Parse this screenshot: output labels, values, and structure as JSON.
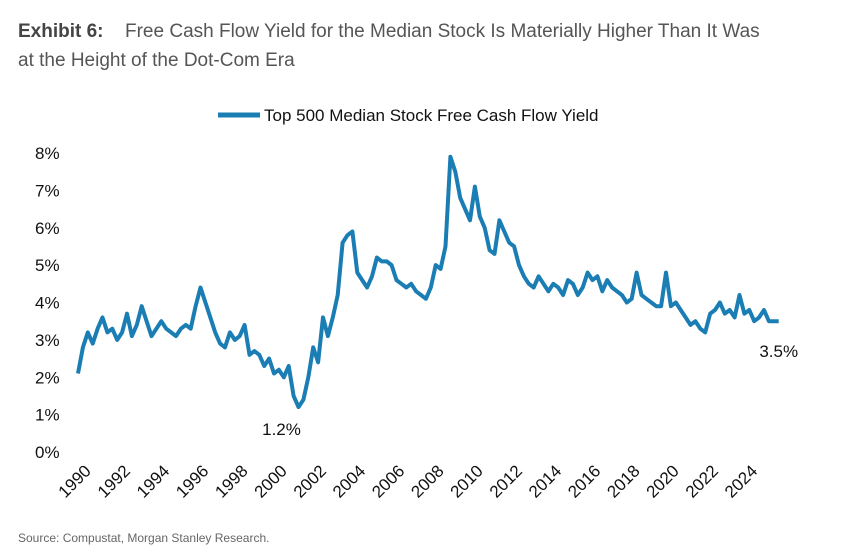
{
  "chart_data": {
    "type": "line",
    "exhibit": "Exhibit 6:",
    "title": "Free Cash Flow Yield for the Median Stock Is Materially Higher Than It Was at the Height of the Dot-Com Era",
    "source": "Source: Compustat, Morgan Stanley Research.",
    "legend": "top",
    "x": [
      1990,
      1990.25,
      1990.5,
      1990.75,
      1991,
      1991.25,
      1991.5,
      1991.75,
      1992,
      1992.25,
      1992.5,
      1992.75,
      1993,
      1993.25,
      1993.5,
      1993.75,
      1994,
      1994.25,
      1994.5,
      1994.75,
      1995,
      1995.25,
      1995.5,
      1995.75,
      1996,
      1996.25,
      1996.5,
      1996.75,
      1997,
      1997.25,
      1997.5,
      1997.75,
      1998,
      1998.25,
      1998.5,
      1998.75,
      1999,
      1999.25,
      1999.5,
      1999.75,
      2000,
      2000.25,
      2000.5,
      2000.75,
      2001,
      2001.25,
      2001.5,
      2001.75,
      2002,
      2002.25,
      2002.5,
      2002.75,
      2003,
      2003.25,
      2003.5,
      2003.75,
      2004,
      2004.25,
      2004.5,
      2004.75,
      2005,
      2005.25,
      2005.5,
      2005.75,
      2006,
      2006.25,
      2006.5,
      2006.75,
      2007,
      2007.25,
      2007.5,
      2007.75,
      2008,
      2008.25,
      2008.5,
      2008.75,
      2009,
      2009.25,
      2009.5,
      2009.75,
      2010,
      2010.25,
      2010.5,
      2010.75,
      2011,
      2011.25,
      2011.5,
      2011.75,
      2012,
      2012.25,
      2012.5,
      2012.75,
      2013,
      2013.25,
      2013.5,
      2013.75,
      2014,
      2014.25,
      2014.5,
      2014.75,
      2015,
      2015.25,
      2015.5,
      2015.75,
      2016,
      2016.25,
      2016.5,
      2016.75,
      2017,
      2017.25,
      2017.5,
      2017.75,
      2018,
      2018.25,
      2018.5,
      2018.75,
      2019,
      2019.25,
      2019.5,
      2019.75,
      2020,
      2020.25,
      2020.5,
      2020.75,
      2021,
      2021.25,
      2021.5,
      2021.75,
      2022,
      2022.25,
      2022.5,
      2022.75,
      2023,
      2023.25,
      2023.5,
      2023.75,
      2024,
      2024.25,
      2024.5,
      2024.75,
      2025,
      2025.25,
      2025.5,
      2025.75
    ],
    "series": [
      {
        "name": "Top 500 Median Stock Free Cash Flow Yield",
        "color": "#1a7db3",
        "values": [
          2.1,
          2.8,
          3.2,
          2.9,
          3.3,
          3.6,
          3.2,
          3.3,
          3.0,
          3.2,
          3.7,
          3.1,
          3.4,
          3.9,
          3.5,
          3.1,
          3.3,
          3.5,
          3.3,
          3.2,
          3.1,
          3.3,
          3.4,
          3.3,
          3.9,
          4.4,
          4.0,
          3.6,
          3.2,
          2.9,
          2.8,
          3.2,
          3.0,
          3.1,
          3.4,
          2.6,
          2.7,
          2.6,
          2.3,
          2.5,
          2.1,
          2.2,
          2.0,
          2.3,
          1.5,
          1.2,
          1.4,
          2.0,
          2.8,
          2.4,
          3.6,
          3.1,
          3.6,
          4.2,
          5.6,
          5.8,
          5.9,
          4.8,
          4.6,
          4.4,
          4.7,
          5.2,
          5.1,
          5.1,
          5.0,
          4.6,
          4.5,
          4.4,
          4.5,
          4.3,
          4.2,
          4.1,
          4.4,
          5.0,
          4.9,
          5.5,
          7.9,
          7.5,
          6.8,
          6.5,
          6.2,
          7.1,
          6.3,
          6.0,
          5.4,
          5.3,
          6.2,
          5.9,
          5.6,
          5.5,
          5.0,
          4.7,
          4.5,
          4.4,
          4.7,
          4.5,
          4.3,
          4.5,
          4.4,
          4.2,
          4.6,
          4.5,
          4.2,
          4.4,
          4.8,
          4.6,
          4.7,
          4.3,
          4.6,
          4.4,
          4.3,
          4.2,
          4.0,
          4.1,
          4.8,
          4.2,
          4.1,
          4.0,
          3.9,
          3.9,
          4.8,
          3.9,
          4.0,
          3.8,
          3.6,
          3.4,
          3.5,
          3.3,
          3.2,
          3.7,
          3.8,
          4.0,
          3.7,
          3.8,
          3.6,
          4.2,
          3.7,
          3.8,
          3.5,
          3.6,
          3.8,
          3.5,
          3.5,
          3.5
        ]
      }
    ],
    "annotations": [
      {
        "text": "1.2%",
        "x": 2001.25,
        "y": 1.2
      },
      {
        "text": "3.5%",
        "x": 2025.75,
        "y": 3.5
      }
    ],
    "xlim": [
      1990,
      2026
    ],
    "xticks": [
      1990,
      1992,
      1994,
      1996,
      1998,
      2000,
      2002,
      2004,
      2006,
      2008,
      2010,
      2012,
      2014,
      2016,
      2018,
      2020,
      2022,
      2024
    ],
    "ylim": [
      0,
      8
    ],
    "yticks": [
      {
        "value": 0,
        "label": "0%"
      },
      {
        "value": 1,
        "label": "1%"
      },
      {
        "value": 2,
        "label": "2%"
      },
      {
        "value": 3,
        "label": "3%"
      },
      {
        "value": 4,
        "label": "4%"
      },
      {
        "value": 5,
        "label": "5%"
      },
      {
        "value": 6,
        "label": "6%"
      },
      {
        "value": 7,
        "label": "7%"
      },
      {
        "value": 8,
        "label": "8%"
      }
    ]
  }
}
